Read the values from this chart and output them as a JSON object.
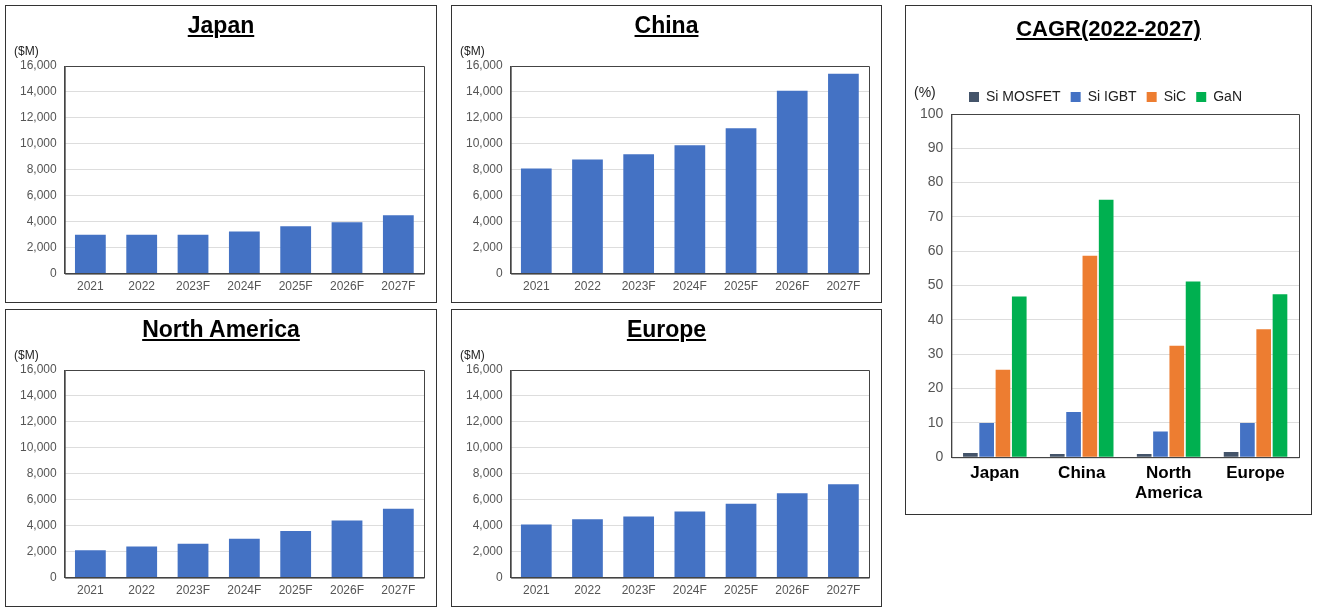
{
  "chart_data": [
    {
      "type": "bar",
      "title": "Japan",
      "ylabel": "($M)",
      "categories": [
        "2021",
        "2022",
        "2023F",
        "2024F",
        "2025F",
        "2026F",
        "2027F"
      ],
      "values": [
        3000,
        3000,
        3000,
        3250,
        3650,
        3950,
        4500
      ],
      "color": "#4472c4",
      "ylim": [
        0,
        16000
      ],
      "yticks": [
        {
          "value": 0,
          "label": "0"
        },
        {
          "value": 2000,
          "label": "2,000"
        },
        {
          "value": 4000,
          "label": "4,000"
        },
        {
          "value": 6000,
          "label": "6,000"
        },
        {
          "value": 8000,
          "label": "8,000"
        },
        {
          "value": 10000,
          "label": "10,000"
        },
        {
          "value": 12000,
          "label": "12,000"
        },
        {
          "value": 14000,
          "label": "14,000"
        },
        {
          "value": 16000,
          "label": "16,000"
        }
      ],
      "grid": "y"
    },
    {
      "type": "bar",
      "title": "China",
      "ylabel": "($M)",
      "categories": [
        "2021",
        "2022",
        "2023F",
        "2024F",
        "2025F",
        "2026F",
        "2027F"
      ],
      "values": [
        8100,
        8800,
        9200,
        9900,
        11200,
        14100,
        15400
      ],
      "color": "#4472c4",
      "ylim": [
        0,
        16000
      ],
      "yticks": [
        {
          "value": 0,
          "label": "0"
        },
        {
          "value": 2000,
          "label": "2,000"
        },
        {
          "value": 4000,
          "label": "4,000"
        },
        {
          "value": 6000,
          "label": "6,000"
        },
        {
          "value": 8000,
          "label": "8,000"
        },
        {
          "value": 10000,
          "label": "10,000"
        },
        {
          "value": 12000,
          "label": "12,000"
        },
        {
          "value": 14000,
          "label": "14,000"
        },
        {
          "value": 16000,
          "label": "16,000"
        }
      ],
      "grid": "y"
    },
    {
      "type": "bar",
      "title": "North America",
      "ylabel": "($M)",
      "categories": [
        "2021",
        "2022",
        "2023F",
        "2024F",
        "2025F",
        "2026F",
        "2027F"
      ],
      "values": [
        2100,
        2400,
        2600,
        3000,
        3600,
        4400,
        5300
      ],
      "color": "#4472c4",
      "ylim": [
        0,
        16000
      ],
      "yticks": [
        {
          "value": 0,
          "label": "0"
        },
        {
          "value": 2000,
          "label": "2,000"
        },
        {
          "value": 4000,
          "label": "4,000"
        },
        {
          "value": 6000,
          "label": "6,000"
        },
        {
          "value": 8000,
          "label": "8,000"
        },
        {
          "value": 10000,
          "label": "10,000"
        },
        {
          "value": 12000,
          "label": "12,000"
        },
        {
          "value": 14000,
          "label": "14,000"
        },
        {
          "value": 16000,
          "label": "16,000"
        }
      ],
      "grid": "y"
    },
    {
      "type": "bar",
      "title": "Europe",
      "ylabel": "($M)",
      "categories": [
        "2021",
        "2022",
        "2023F",
        "2024F",
        "2025F",
        "2026F",
        "2027F"
      ],
      "values": [
        4100,
        4500,
        4700,
        5100,
        5700,
        6500,
        7200
      ],
      "color": "#4472c4",
      "ylim": [
        0,
        16000
      ],
      "yticks": [
        {
          "value": 0,
          "label": "0"
        },
        {
          "value": 2000,
          "label": "2,000"
        },
        {
          "value": 4000,
          "label": "4,000"
        },
        {
          "value": 6000,
          "label": "6,000"
        },
        {
          "value": 8000,
          "label": "8,000"
        },
        {
          "value": 10000,
          "label": "10,000"
        },
        {
          "value": 12000,
          "label": "12,000"
        },
        {
          "value": 14000,
          "label": "14,000"
        },
        {
          "value": 16000,
          "label": "16,000"
        }
      ],
      "grid": "y"
    },
    {
      "type": "bar",
      "title": "CAGR(2022-2027)",
      "ylabel": "(%)",
      "categories": [
        "Japan",
        "China",
        "North America",
        "Europe"
      ],
      "series": [
        {
          "name": "Si MOSFET",
          "color": "#44546a",
          "values": [
            1.2,
            0.9,
            0.9,
            1.5
          ]
        },
        {
          "name": "Si IGBT",
          "color": "#4472c4",
          "values": [
            10,
            13.2,
            7.5,
            10
          ]
        },
        {
          "name": "SiC",
          "color": "#ed7d31",
          "values": [
            25.5,
            58.7,
            32.5,
            37.3
          ]
        },
        {
          "name": "GaN",
          "color": "#00b050",
          "values": [
            46.8,
            75,
            51.2,
            47.5
          ]
        }
      ],
      "ylim": [
        0,
        100
      ],
      "yticks": [
        0,
        10,
        20,
        30,
        40,
        50,
        60,
        70,
        80,
        90,
        100
      ],
      "grid": "y",
      "legend": "top"
    }
  ]
}
